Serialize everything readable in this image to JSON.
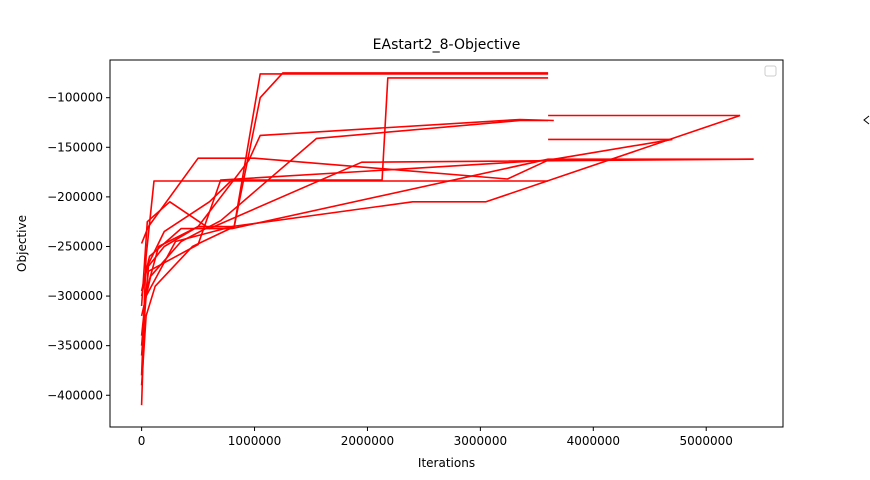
{
  "chart_data": {
    "type": "line",
    "title": "EAstart2_8-Objective",
    "xlabel": "Iterations",
    "ylabel": "Objective",
    "xlim": [
      -280000,
      5680000
    ],
    "ylim": [
      -432000,
      -62000
    ],
    "xticks": [
      0,
      1000000,
      2000000,
      3000000,
      4000000,
      5000000
    ],
    "xtick_labels": [
      "0",
      "1000000",
      "2000000",
      "3000000",
      "4000000",
      "5000000"
    ],
    "yticks": [
      -400000,
      -350000,
      -300000,
      -250000,
      -200000,
      -150000,
      -100000
    ],
    "ytick_labels": [
      "−400000",
      "−350000",
      "−300000",
      "−250000",
      "−200000",
      "−150000",
      "−100000"
    ],
    "grid": false,
    "legend": "empty box, top-right",
    "line_color": "#ff0000",
    "series": [
      {
        "x": [
          0,
          40000,
          120000,
          450000,
          820000,
          1050000,
          1250000,
          3600000
        ],
        "y": [
          -390000,
          -320000,
          -290000,
          -250000,
          -230000,
          -100000,
          -75000,
          -75000
        ]
      },
      {
        "x": [
          0,
          60000,
          200000,
          500000,
          820000,
          1050000,
          3600000
        ],
        "y": [
          -350000,
          -270000,
          -250000,
          -230000,
          -230000,
          -76000,
          -76000
        ]
      },
      {
        "x": [
          0,
          50000,
          200000,
          600000,
          800000,
          2130000,
          2180000,
          3600000
        ],
        "y": [
          -300000,
          -270000,
          -235000,
          -205000,
          -183000,
          -183000,
          -80000,
          -80000
        ]
      },
      {
        "x": [
          0,
          30000,
          150000,
          500000,
          950000,
          1050000,
          3350000,
          3650000
        ],
        "y": [
          -410000,
          -300000,
          -250000,
          -230000,
          -163000,
          -138000,
          -122000,
          -123000
        ]
      },
      {
        "x": [
          0,
          80000,
          350000,
          700000,
          1550000,
          3350000,
          3600000
        ],
        "y": [
          -320000,
          -280000,
          -245000,
          -224000,
          -141000,
          -123000,
          -123000
        ]
      },
      {
        "x": [
          0,
          40000,
          300000,
          800000,
          2400000,
          3050000,
          5300000
        ],
        "y": [
          -360000,
          -300000,
          -245000,
          -230000,
          -205000,
          -205000,
          -118000
        ]
      },
      {
        "x": [
          3600000,
          5300000
        ],
        "y": [
          -118000,
          -118000
        ]
      },
      {
        "x": [
          0,
          60000,
          500000,
          700000,
          3600000,
          4700000
        ],
        "y": [
          -340000,
          -275000,
          -248000,
          -183000,
          -163000,
          -142000
        ]
      },
      {
        "x": [
          3600000,
          4700000
        ],
        "y": [
          -142000,
          -142000
        ]
      },
      {
        "x": [
          0,
          70000,
          350000,
          800000,
          3600000,
          5420000
        ],
        "y": [
          -295000,
          -260000,
          -232000,
          -232000,
          -162000,
          -162000
        ]
      },
      {
        "x": [
          0,
          50000,
          250000,
          600000,
          1950000,
          5420000
        ],
        "y": [
          -310000,
          -225000,
          -205000,
          -232000,
          -165000,
          -162000
        ]
      },
      {
        "x": [
          0,
          40000,
          110000,
          3600000
        ],
        "y": [
          -380000,
          -260000,
          -184000,
          -184000
        ]
      },
      {
        "x": [
          0,
          60000,
          500000,
          1000000,
          3240000,
          3600000
        ],
        "y": [
          -247000,
          -230000,
          -161000,
          -161000,
          -182000,
          -163000
        ]
      }
    ]
  }
}
